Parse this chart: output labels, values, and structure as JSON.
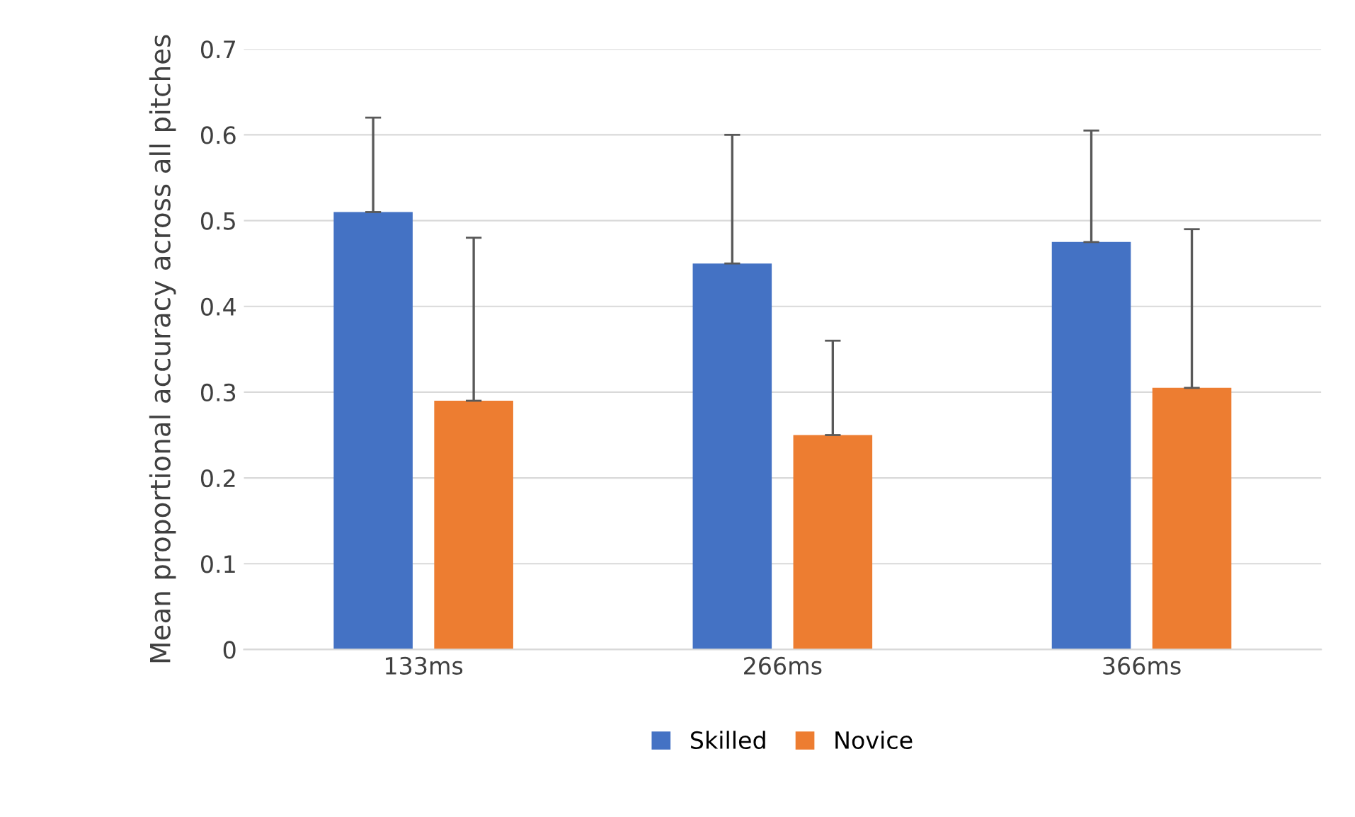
{
  "chart_data": {
    "type": "bar",
    "ylabel": "Mean proportional accuracy across all pitches",
    "categories": [
      "133ms",
      "266ms",
      "366ms"
    ],
    "series": [
      {
        "name": "Skilled",
        "color": "#4472c4",
        "values": [
          0.51,
          0.45,
          0.475
        ],
        "errors": [
          [
            0.51,
            0.62
          ],
          [
            0.45,
            0.6
          ],
          [
            0.475,
            0.605
          ]
        ]
      },
      {
        "name": "Novice",
        "color": "#ed7d31",
        "values": [
          0.29,
          0.25,
          0.305
        ],
        "errors": [
          [
            0.29,
            0.48
          ],
          [
            0.25,
            0.36
          ],
          [
            0.305,
            0.49
          ]
        ]
      }
    ],
    "ylim": [
      0,
      0.7
    ],
    "yticks": [
      0,
      0.1,
      0.2,
      0.3,
      0.4,
      0.5,
      0.6,
      0.7
    ],
    "grid": "y",
    "legend": "bottom"
  }
}
